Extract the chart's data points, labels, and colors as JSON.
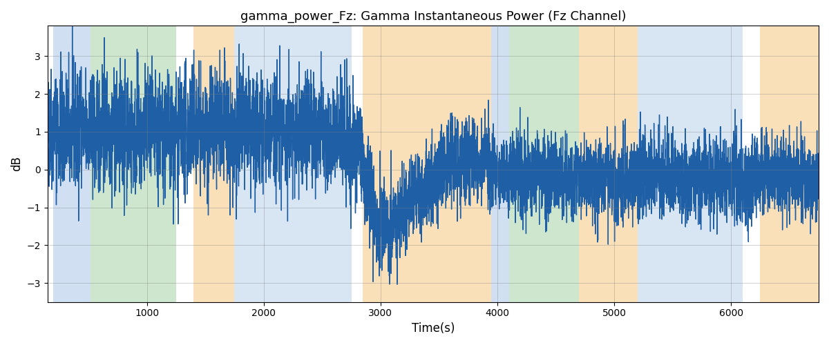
{
  "title": "gamma_power_Fz: Gamma Instantaneous Power (Fz Channel)",
  "xlabel": "Time(s)",
  "ylabel": "dB",
  "xlim": [
    150,
    6750
  ],
  "ylim": [
    -3.5,
    3.8
  ],
  "yticks": [
    -3,
    -2,
    -1,
    0,
    1,
    2,
    3
  ],
  "xticks": [
    1000,
    2000,
    3000,
    4000,
    5000,
    6000
  ],
  "line_color": "#1f5fa6",
  "line_width": 1.0,
  "background_color": "#ffffff",
  "regions": [
    {
      "xmin": 200,
      "xmax": 520,
      "color": "#aac8e8",
      "alpha": 0.55
    },
    {
      "xmin": 520,
      "xmax": 1250,
      "color": "#90c890",
      "alpha": 0.45
    },
    {
      "xmin": 1400,
      "xmax": 1750,
      "color": "#f5c880",
      "alpha": 0.55
    },
    {
      "xmin": 1750,
      "xmax": 2750,
      "color": "#aac8e8",
      "alpha": 0.45
    },
    {
      "xmin": 2850,
      "xmax": 3950,
      "color": "#f5c880",
      "alpha": 0.55
    },
    {
      "xmin": 3950,
      "xmax": 4100,
      "color": "#aac8e8",
      "alpha": 0.55
    },
    {
      "xmin": 4100,
      "xmax": 4700,
      "color": "#90c890",
      "alpha": 0.45
    },
    {
      "xmin": 4700,
      "xmax": 5200,
      "color": "#f5c880",
      "alpha": 0.55
    },
    {
      "xmin": 5200,
      "xmax": 6100,
      "color": "#aac8e8",
      "alpha": 0.45
    },
    {
      "xmin": 6250,
      "xmax": 6750,
      "color": "#f5c880",
      "alpha": 0.55
    }
  ],
  "seed": 42,
  "n_points": 6500,
  "t_start": 150,
  "t_end": 6750
}
